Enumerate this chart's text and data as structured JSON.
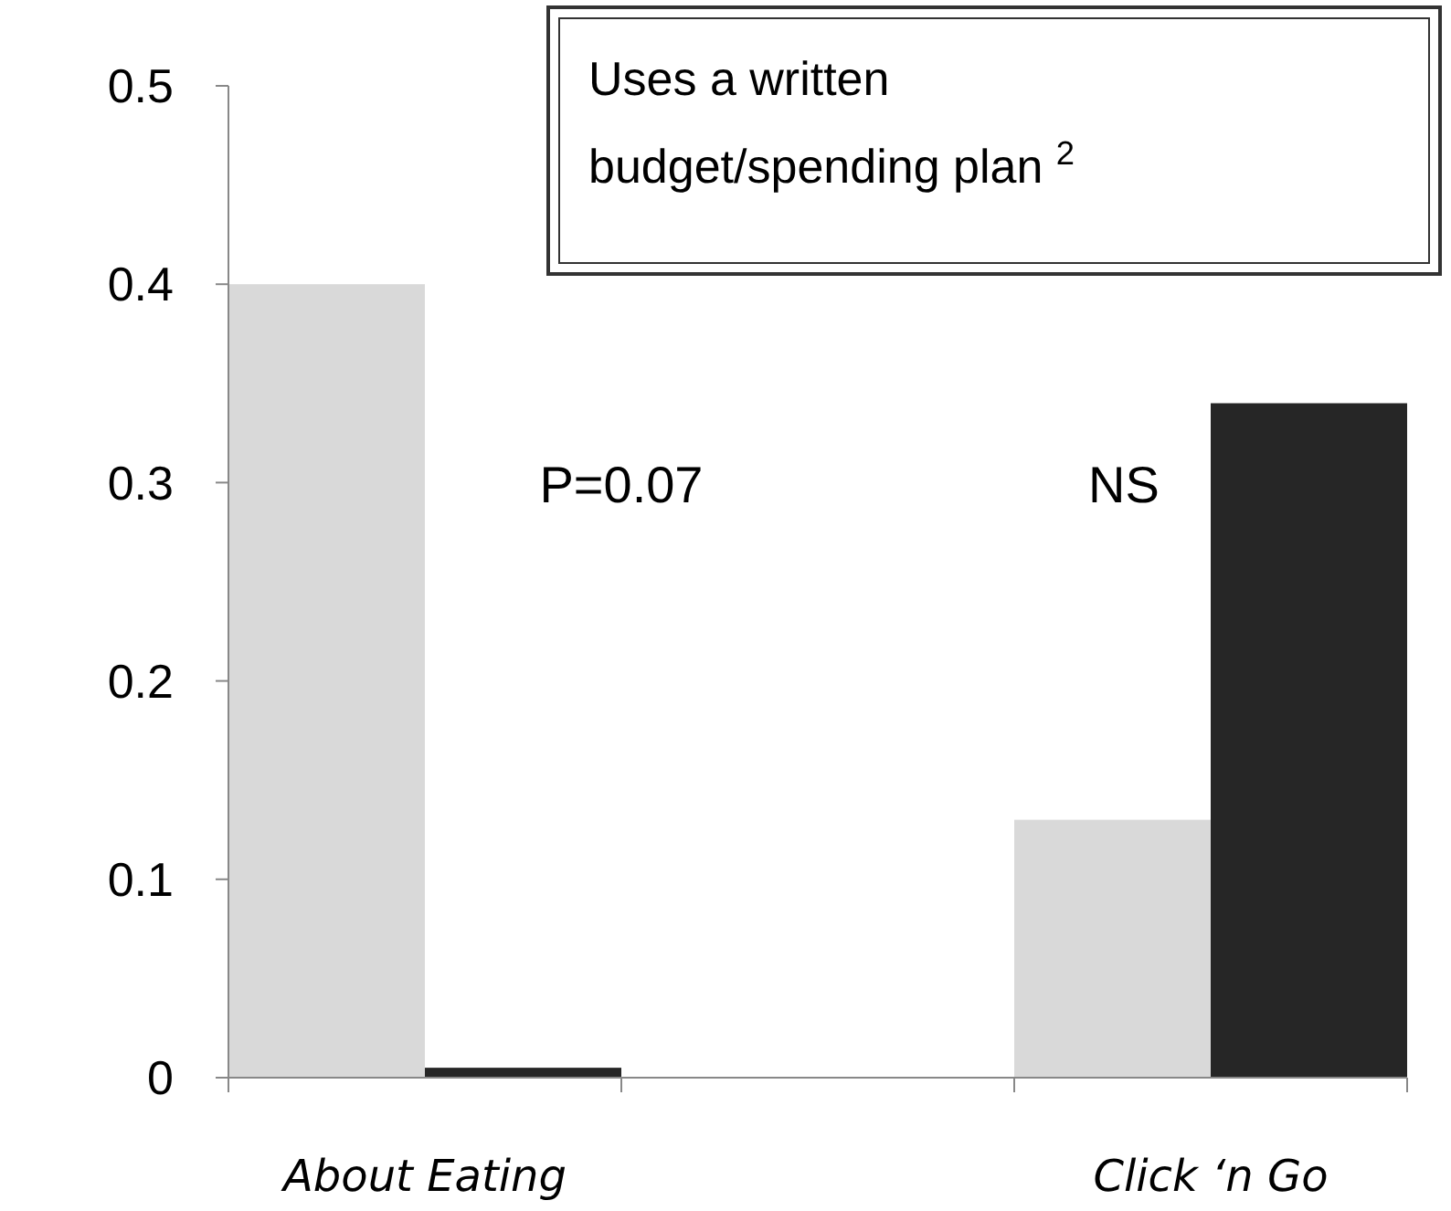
{
  "chart_data": {
    "type": "bar",
    "title": "Uses a written budget/spending plan $^{2}$",
    "categories": [
      "About Eating",
      "Click ‘n Go"
    ],
    "series": [
      {
        "color": "#d9d9d9",
        "values": [
          0.4,
          0.13
        ]
      },
      {
        "color": "#262626",
        "values": [
          0.005,
          0.34
        ]
      }
    ],
    "ylim": [
      0,
      0.5
    ],
    "yticks": [
      0,
      0.1,
      0.2,
      0.3,
      0.4,
      0.5
    ],
    "grid": false,
    "annotations": [
      "P=0.07",
      "NS"
    ]
  }
}
